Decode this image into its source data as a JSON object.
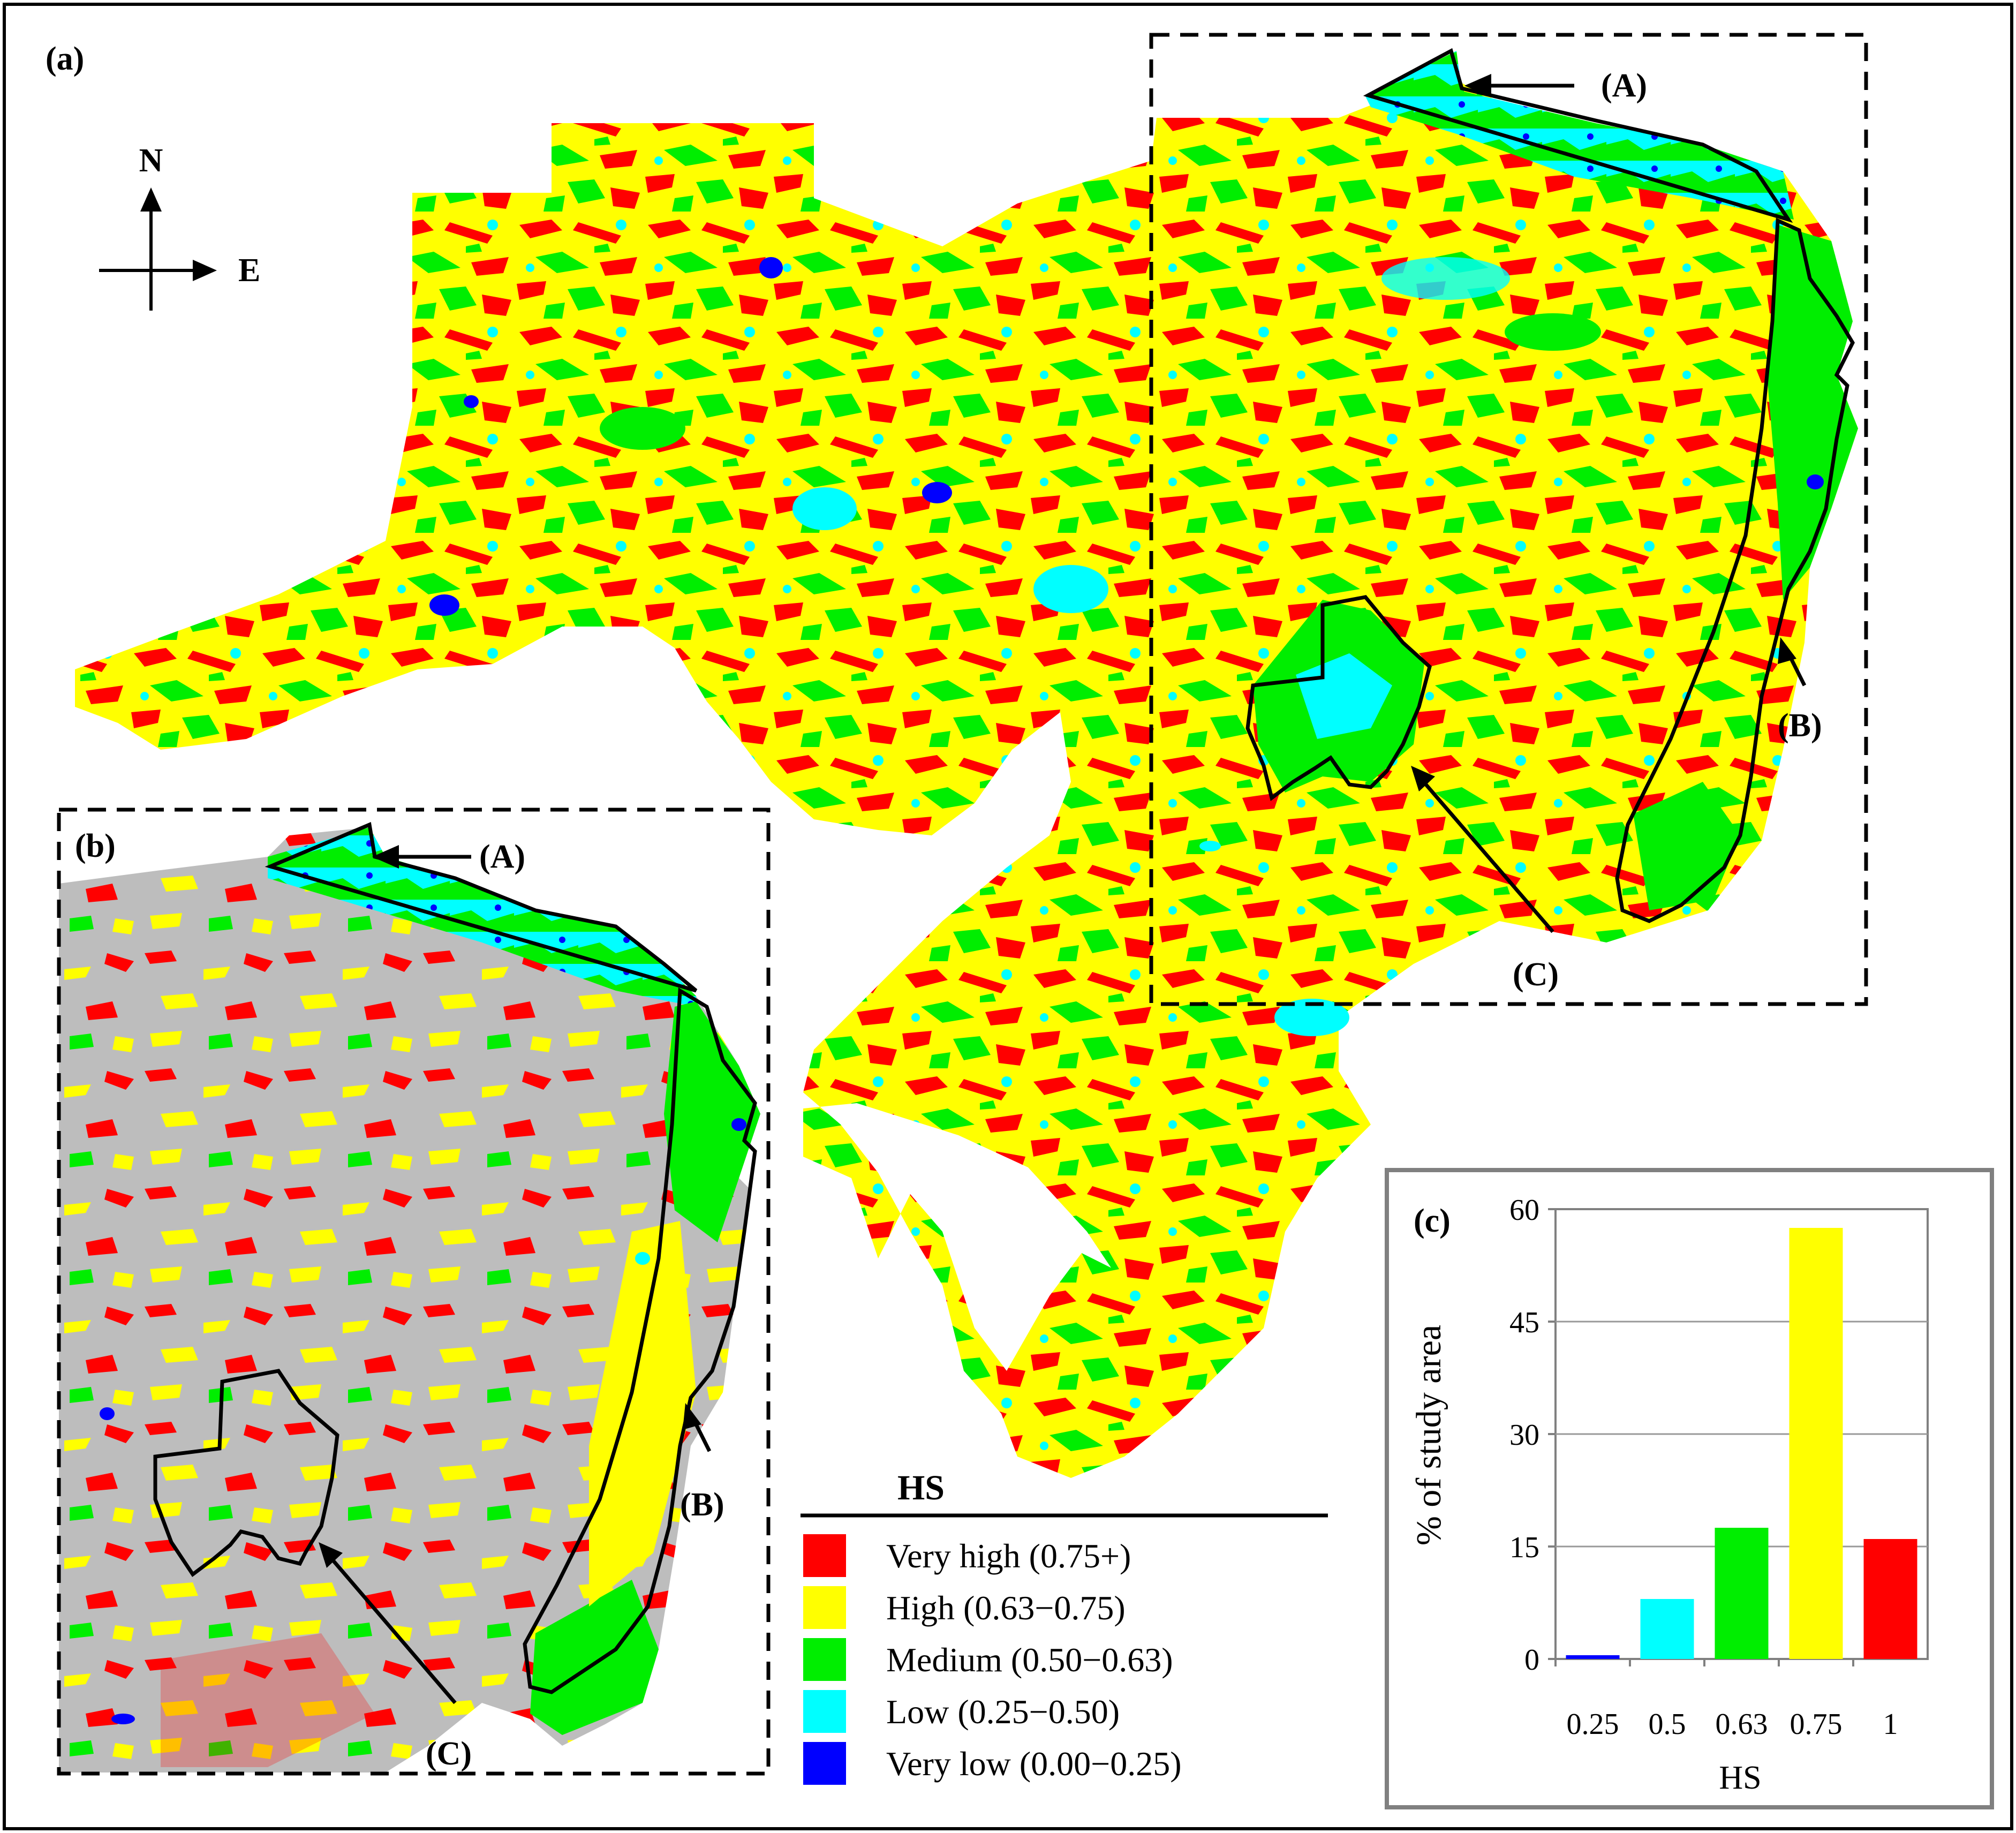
{
  "panel_a": {
    "label": "(a)",
    "callouts": {
      "a": "(A)",
      "b": "(B)",
      "c": "(C)"
    }
  },
  "panel_b": {
    "label": "(b)",
    "callouts": {
      "a": "(A)",
      "b": "(B)",
      "c": "(C)"
    }
  },
  "compass": {
    "north": "N",
    "east": "E"
  },
  "legend": {
    "title": "HS",
    "items": [
      {
        "label": "Very high (0.75+)",
        "color": "#ff0000"
      },
      {
        "label": "High (0.63−0.75)",
        "color": "#ffff00"
      },
      {
        "label": "Medium (0.50−0.63)",
        "color": "#00ee00"
      },
      {
        "label": "Low (0.25−0.50)",
        "color": "#00ffff"
      },
      {
        "label": "Very low (0.00−0.25)",
        "color": "#0000ff"
      }
    ]
  },
  "colors": {
    "very_high": "#ff0000",
    "high": "#ffff00",
    "medium": "#00ee00",
    "low": "#00ffff",
    "very_low": "#0000ff",
    "masked": "#bdbdbd"
  },
  "chart_data": {
    "type": "bar",
    "panel_label": "(c)",
    "categories": [
      "0.25",
      "0.5",
      "0.63",
      "0.75",
      "1"
    ],
    "values": [
      0.5,
      8,
      17.5,
      57.5,
      16
    ],
    "colors": [
      "#0000ff",
      "#00ffff",
      "#00ee00",
      "#ffff00",
      "#ff0000"
    ],
    "xlabel": "HS",
    "ylabel": "% of study area",
    "ylim": [
      0,
      60
    ],
    "yticks": [
      "0",
      "15",
      "30",
      "45",
      "60"
    ],
    "grid": true
  }
}
